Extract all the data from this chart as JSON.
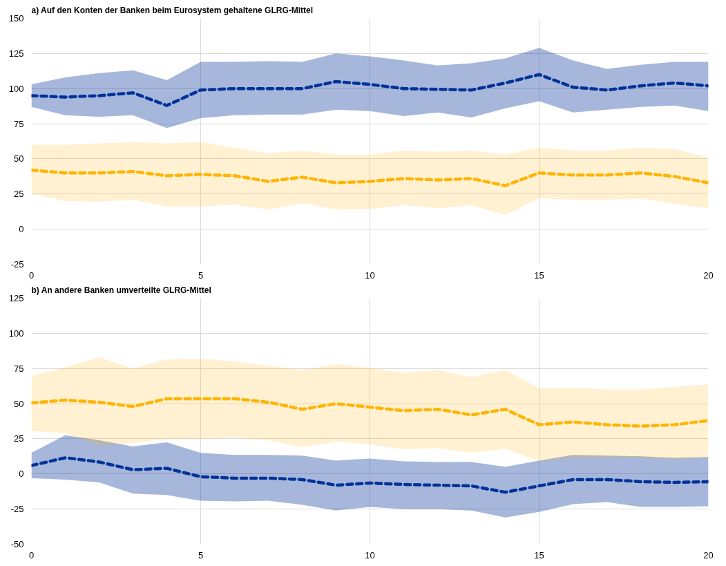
{
  "chart_data": [
    {
      "type": "line",
      "title": "a) Auf den Konten der Banken beim Eurosystem gehaltene GLRG-Mittel",
      "x": [
        0,
        1,
        2,
        3,
        4,
        5,
        6,
        7,
        8,
        9,
        10,
        11,
        12,
        13,
        14,
        15,
        16,
        17,
        18,
        19,
        20
      ],
      "xlim": [
        0,
        20
      ],
      "xticks": [
        0,
        5,
        10,
        15,
        20
      ],
      "ylim": [
        -25,
        150
      ],
      "yticks": [
        -25,
        0,
        25,
        50,
        75,
        100,
        125,
        150
      ],
      "grid": true,
      "line_style": "dashed",
      "marker": "none",
      "series": [
        {
          "color": "#003299",
          "values": [
            95,
            94,
            95,
            97,
            88,
            99,
            100,
            100,
            100,
            105,
            103,
            100,
            99.5,
            99,
            104,
            110,
            101,
            99,
            102,
            104,
            102
          ],
          "upper": [
            103,
            108,
            111,
            113,
            106,
            119,
            119,
            119.5,
            119,
            125,
            123,
            120,
            116.5,
            118,
            121.5,
            129,
            120,
            114,
            117,
            119,
            119
          ],
          "lower": [
            87,
            81,
            80,
            81,
            72,
            79,
            81,
            81.5,
            81.5,
            85,
            84,
            80.5,
            83,
            79.5,
            86,
            91,
            83,
            85,
            87,
            88,
            84
          ]
        },
        {
          "color": "#ffb400",
          "values": [
            42,
            40,
            40,
            41,
            38,
            39,
            38,
            34,
            37,
            33,
            34,
            36,
            35,
            36,
            31,
            40,
            38.5,
            38.5,
            40,
            37.5,
            33
          ],
          "upper": [
            60,
            60,
            61,
            62,
            61,
            62,
            58,
            54,
            56,
            53,
            53,
            56,
            55,
            56,
            53,
            58,
            56,
            56,
            58,
            57,
            51
          ],
          "lower": [
            25,
            20,
            19.5,
            21,
            16,
            16,
            17.5,
            14,
            18.5,
            14,
            14.5,
            17,
            15,
            17,
            10,
            22,
            21,
            21,
            22,
            18,
            15
          ]
        }
      ]
    },
    {
      "type": "line",
      "title": "b) An andere Banken umverteilte GLRG-Mittel",
      "x": [
        0,
        1,
        2,
        3,
        4,
        5,
        6,
        7,
        8,
        9,
        10,
        11,
        12,
        13,
        14,
        15,
        16,
        17,
        18,
        19,
        20
      ],
      "xlim": [
        0,
        20
      ],
      "xticks": [
        0,
        5,
        10,
        15,
        20
      ],
      "ylim": [
        -50,
        125
      ],
      "yticks": [
        -50,
        -25,
        0,
        25,
        50,
        75,
        100,
        125
      ],
      "grid": true,
      "line_style": "dashed",
      "marker": "none",
      "series": [
        {
          "color": "#003299",
          "values": [
            6,
            11.5,
            8.5,
            3,
            4,
            -2,
            -3,
            -3,
            -4,
            -8,
            -6.5,
            -7.5,
            -8,
            -8.5,
            -13,
            -8.5,
            -4,
            -4,
            -5.5,
            -6,
            -5.5
          ],
          "upper": [
            15,
            27.5,
            24,
            19.5,
            22.5,
            15,
            13.5,
            13.5,
            13,
            9.5,
            11,
            9,
            8.5,
            8.5,
            5,
            9.5,
            13.5,
            13,
            12.5,
            11.5,
            12
          ],
          "lower": [
            -3,
            -4,
            -6,
            -14,
            -15,
            -19,
            -19.5,
            -19,
            -22,
            -26,
            -23.5,
            -25,
            -25,
            -26,
            -31,
            -27,
            -21.5,
            -20,
            -23.5,
            -23.5,
            -23
          ]
        },
        {
          "color": "#ffb400",
          "values": [
            50.5,
            52.5,
            51,
            48,
            53.5,
            53.5,
            53.5,
            51,
            46,
            50,
            47.5,
            45,
            46,
            42,
            46,
            35,
            37,
            35,
            34,
            35,
            38
          ],
          "upper": [
            70,
            76,
            83,
            75,
            81.5,
            82,
            80,
            77,
            74,
            78,
            75.5,
            72,
            74,
            69,
            74,
            61,
            61.5,
            60,
            60,
            62,
            63.5
          ],
          "lower": [
            30.5,
            29,
            20,
            22,
            25,
            25,
            26,
            24,
            19,
            23,
            21,
            17.5,
            18.5,
            15,
            18,
            9,
            11.5,
            11.5,
            11.5,
            10.5,
            12
          ]
        }
      ]
    }
  ]
}
